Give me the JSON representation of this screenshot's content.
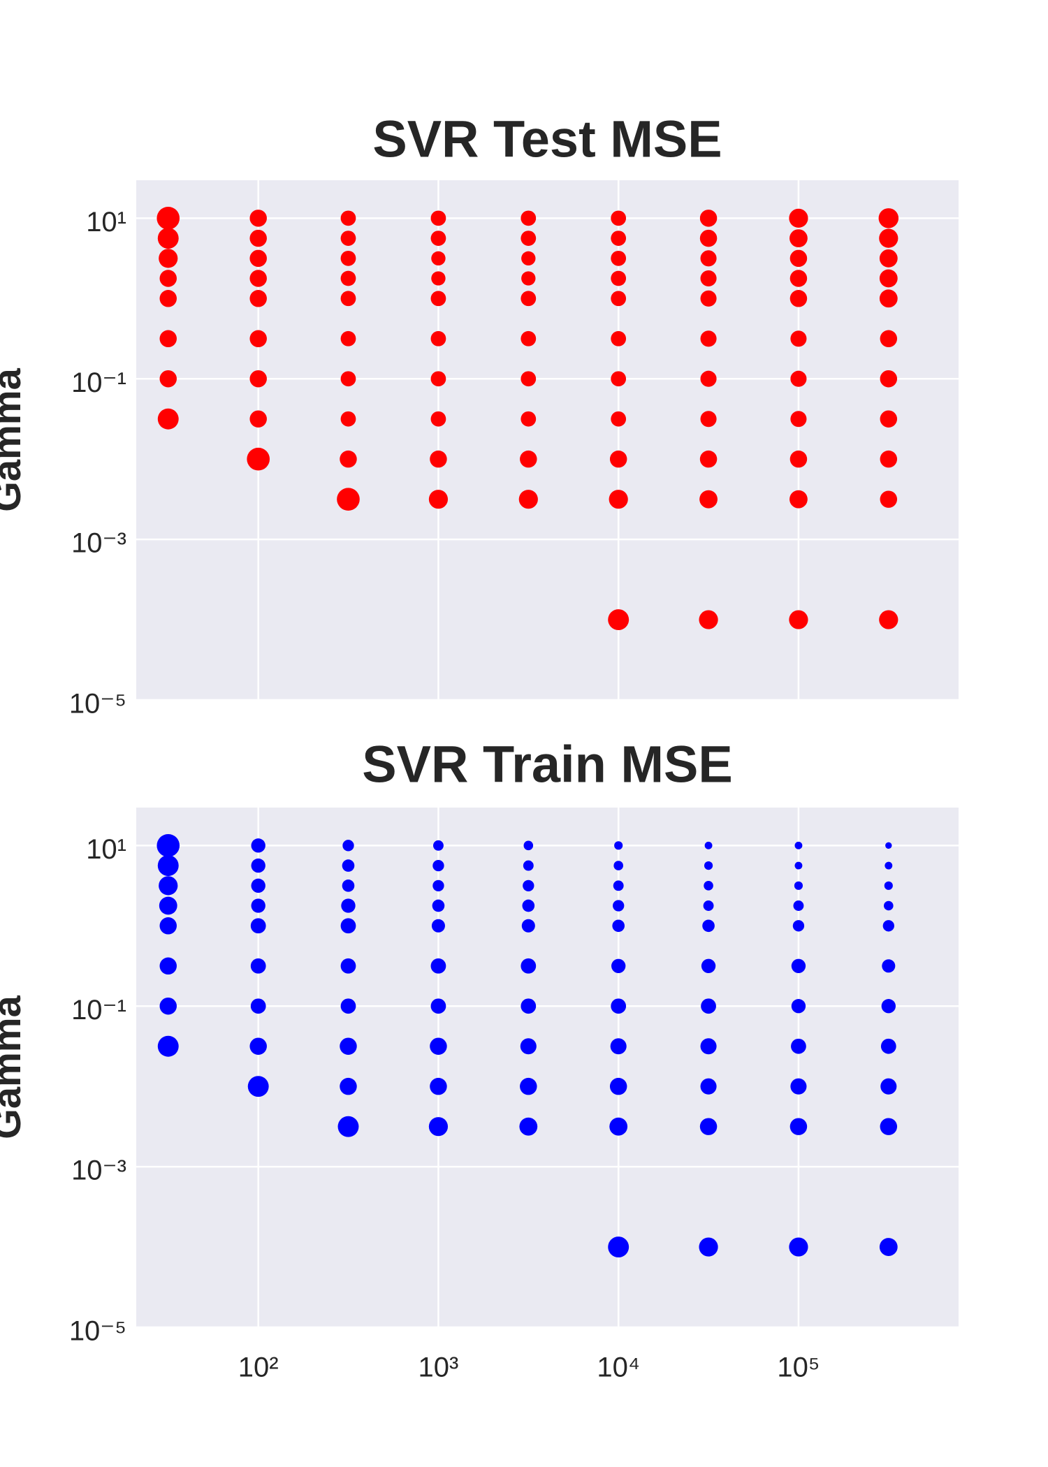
{
  "chart_data": [
    {
      "type": "scatter",
      "title": "SVR Test MSE",
      "ylabel": "Gamma",
      "color": "#ff0000",
      "log_x": true,
      "log_y": true,
      "grid": true,
      "show_xtick_labels": false,
      "xlim": [
        21,
        774000
      ],
      "ylim": [
        1e-05,
        29.7
      ],
      "xticks": [
        100,
        1000,
        10000,
        100000
      ],
      "yticks": [
        {
          "value": 10,
          "label": "10¹"
        },
        {
          "value": 0.1,
          "label": "10⁻¹"
        },
        {
          "value": 0.001,
          "label": "10⁻³"
        },
        {
          "value": 1e-05,
          "label": "10⁻⁵"
        }
      ],
      "x": [
        31.6,
        31.6,
        31.6,
        31.6,
        31.6,
        31.6,
        31.6,
        31.6,
        100,
        100,
        100,
        100,
        100,
        100,
        100,
        100,
        100,
        316,
        316,
        316,
        316,
        316,
        316,
        316,
        316,
        316,
        316,
        1000,
        1000,
        1000,
        1000,
        1000,
        1000,
        1000,
        1000,
        1000,
        1000,
        3162,
        3162,
        3162,
        3162,
        3162,
        3162,
        3162,
        3162,
        3162,
        3162,
        10000,
        10000,
        10000,
        10000,
        10000,
        10000,
        10000,
        10000,
        10000,
        10000,
        10000,
        31623,
        31623,
        31623,
        31623,
        31623,
        31623,
        31623,
        31623,
        31623,
        31623,
        31623,
        100000,
        100000,
        100000,
        100000,
        100000,
        100000,
        100000,
        100000,
        100000,
        100000,
        100000,
        316228,
        316228,
        316228,
        316228,
        316228,
        316228,
        316228,
        316228,
        316228,
        316228,
        316228
      ],
      "y": [
        10,
        5.62,
        3.16,
        1.78,
        1,
        0.316,
        0.1,
        0.0316,
        10,
        5.62,
        3.16,
        1.78,
        1,
        0.316,
        0.1,
        0.0316,
        0.01,
        10,
        5.62,
        3.16,
        1.78,
        1,
        0.316,
        0.1,
        0.0316,
        0.01,
        0.00316,
        10,
        5.62,
        3.16,
        1.78,
        1,
        0.316,
        0.1,
        0.0316,
        0.01,
        0.00316,
        10,
        5.62,
        3.16,
        1.78,
        1,
        0.316,
        0.1,
        0.0316,
        0.01,
        0.00316,
        10,
        5.62,
        3.16,
        1.78,
        1,
        0.316,
        0.1,
        0.0316,
        0.01,
        0.00316,
        0.0001,
        10,
        5.62,
        3.16,
        1.78,
        1,
        0.316,
        0.1,
        0.0316,
        0.01,
        0.00316,
        0.0001,
        10,
        5.62,
        3.16,
        1.78,
        1,
        0.316,
        0.1,
        0.0316,
        0.01,
        0.00316,
        0.0001,
        10,
        5.62,
        3.16,
        1.78,
        1,
        0.316,
        0.1,
        0.0316,
        0.01,
        0.00316,
        0.0001
      ],
      "sizes": [
        144,
        121,
        100,
        81,
        81,
        81,
        81,
        121,
        81,
        81,
        81,
        81,
        81,
        81,
        81,
        81,
        144,
        64,
        64,
        64,
        64,
        64,
        64,
        64,
        64,
        81,
        144,
        64,
        64,
        56,
        56,
        64,
        64,
        64,
        64,
        81,
        100,
        64,
        64,
        56,
        56,
        64,
        64,
        64,
        64,
        81,
        100,
        64,
        64,
        64,
        64,
        64,
        64,
        64,
        64,
        81,
        100,
        121,
        81,
        81,
        72,
        72,
        72,
        72,
        72,
        72,
        81,
        90,
        100,
        100,
        90,
        81,
        81,
        81,
        72,
        72,
        72,
        81,
        90,
        100,
        110,
        100,
        90,
        90,
        90,
        81,
        81,
        81,
        81,
        81,
        100
      ]
    },
    {
      "type": "scatter",
      "title": "SVR Train MSE",
      "ylabel": "Gamma",
      "color": "#0000ff",
      "log_x": true,
      "log_y": true,
      "grid": true,
      "show_xtick_labels": true,
      "xlim": [
        21,
        774000
      ],
      "ylim": [
        1e-05,
        29.7
      ],
      "xticks": [
        {
          "value": 100,
          "label": "10²"
        },
        {
          "value": 1000,
          "label": "10³"
        },
        {
          "value": 10000,
          "label": "10⁴"
        },
        {
          "value": 100000,
          "label": "10⁵"
        }
      ],
      "yticks": [
        {
          "value": 10,
          "label": "10¹"
        },
        {
          "value": 0.1,
          "label": "10⁻¹"
        },
        {
          "value": 0.001,
          "label": "10⁻³"
        },
        {
          "value": 1e-05,
          "label": "10⁻⁵"
        }
      ],
      "x": [
        31.6,
        31.6,
        31.6,
        31.6,
        31.6,
        31.6,
        31.6,
        31.6,
        100,
        100,
        100,
        100,
        100,
        100,
        100,
        100,
        100,
        316,
        316,
        316,
        316,
        316,
        316,
        316,
        316,
        316,
        316,
        1000,
        1000,
        1000,
        1000,
        1000,
        1000,
        1000,
        1000,
        1000,
        1000,
        3162,
        3162,
        3162,
        3162,
        3162,
        3162,
        3162,
        3162,
        3162,
        3162,
        10000,
        10000,
        10000,
        10000,
        10000,
        10000,
        10000,
        10000,
        10000,
        10000,
        10000,
        31623,
        31623,
        31623,
        31623,
        31623,
        31623,
        31623,
        31623,
        31623,
        31623,
        31623,
        100000,
        100000,
        100000,
        100000,
        100000,
        100000,
        100000,
        100000,
        100000,
        100000,
        100000,
        316228,
        316228,
        316228,
        316228,
        316228,
        316228,
        316228,
        316228,
        316228,
        316228,
        316228
      ],
      "y": [
        10,
        5.62,
        3.16,
        1.78,
        1,
        0.316,
        0.1,
        0.0316,
        10,
        5.62,
        3.16,
        1.78,
        1,
        0.316,
        0.1,
        0.0316,
        0.01,
        10,
        5.62,
        3.16,
        1.78,
        1,
        0.316,
        0.1,
        0.0316,
        0.01,
        0.00316,
        10,
        5.62,
        3.16,
        1.78,
        1,
        0.316,
        0.1,
        0.0316,
        0.01,
        0.00316,
        10,
        5.62,
        3.16,
        1.78,
        1,
        0.316,
        0.1,
        0.0316,
        0.01,
        0.00316,
        10,
        5.62,
        3.16,
        1.78,
        1,
        0.316,
        0.1,
        0.0316,
        0.01,
        0.00316,
        0.0001,
        10,
        5.62,
        3.16,
        1.78,
        1,
        0.316,
        0.1,
        0.0316,
        0.01,
        0.00316,
        0.0001,
        10,
        5.62,
        3.16,
        1.78,
        1,
        0.316,
        0.1,
        0.0316,
        0.01,
        0.00316,
        0.0001,
        10,
        5.62,
        3.16,
        1.78,
        1,
        0.316,
        0.1,
        0.0316,
        0.01,
        0.00316,
        0.0001
      ],
      "sizes": [
        144,
        121,
        100,
        90,
        81,
        81,
        81,
        121,
        56,
        56,
        56,
        56,
        64,
        64,
        64,
        81,
        121,
        36,
        42,
        42,
        56,
        64,
        64,
        64,
        81,
        81,
        121,
        30,
        36,
        36,
        42,
        49,
        64,
        64,
        81,
        81,
        100,
        25,
        30,
        36,
        42,
        49,
        64,
        64,
        72,
        81,
        90,
        20,
        25,
        30,
        36,
        42,
        56,
        64,
        72,
        81,
        90,
        121,
        16,
        20,
        25,
        30,
        42,
        56,
        64,
        72,
        72,
        81,
        100,
        16,
        16,
        20,
        30,
        36,
        56,
        56,
        64,
        72,
        81,
        100,
        12,
        16,
        20,
        25,
        36,
        49,
        56,
        64,
        72,
        81,
        90
      ]
    }
  ]
}
